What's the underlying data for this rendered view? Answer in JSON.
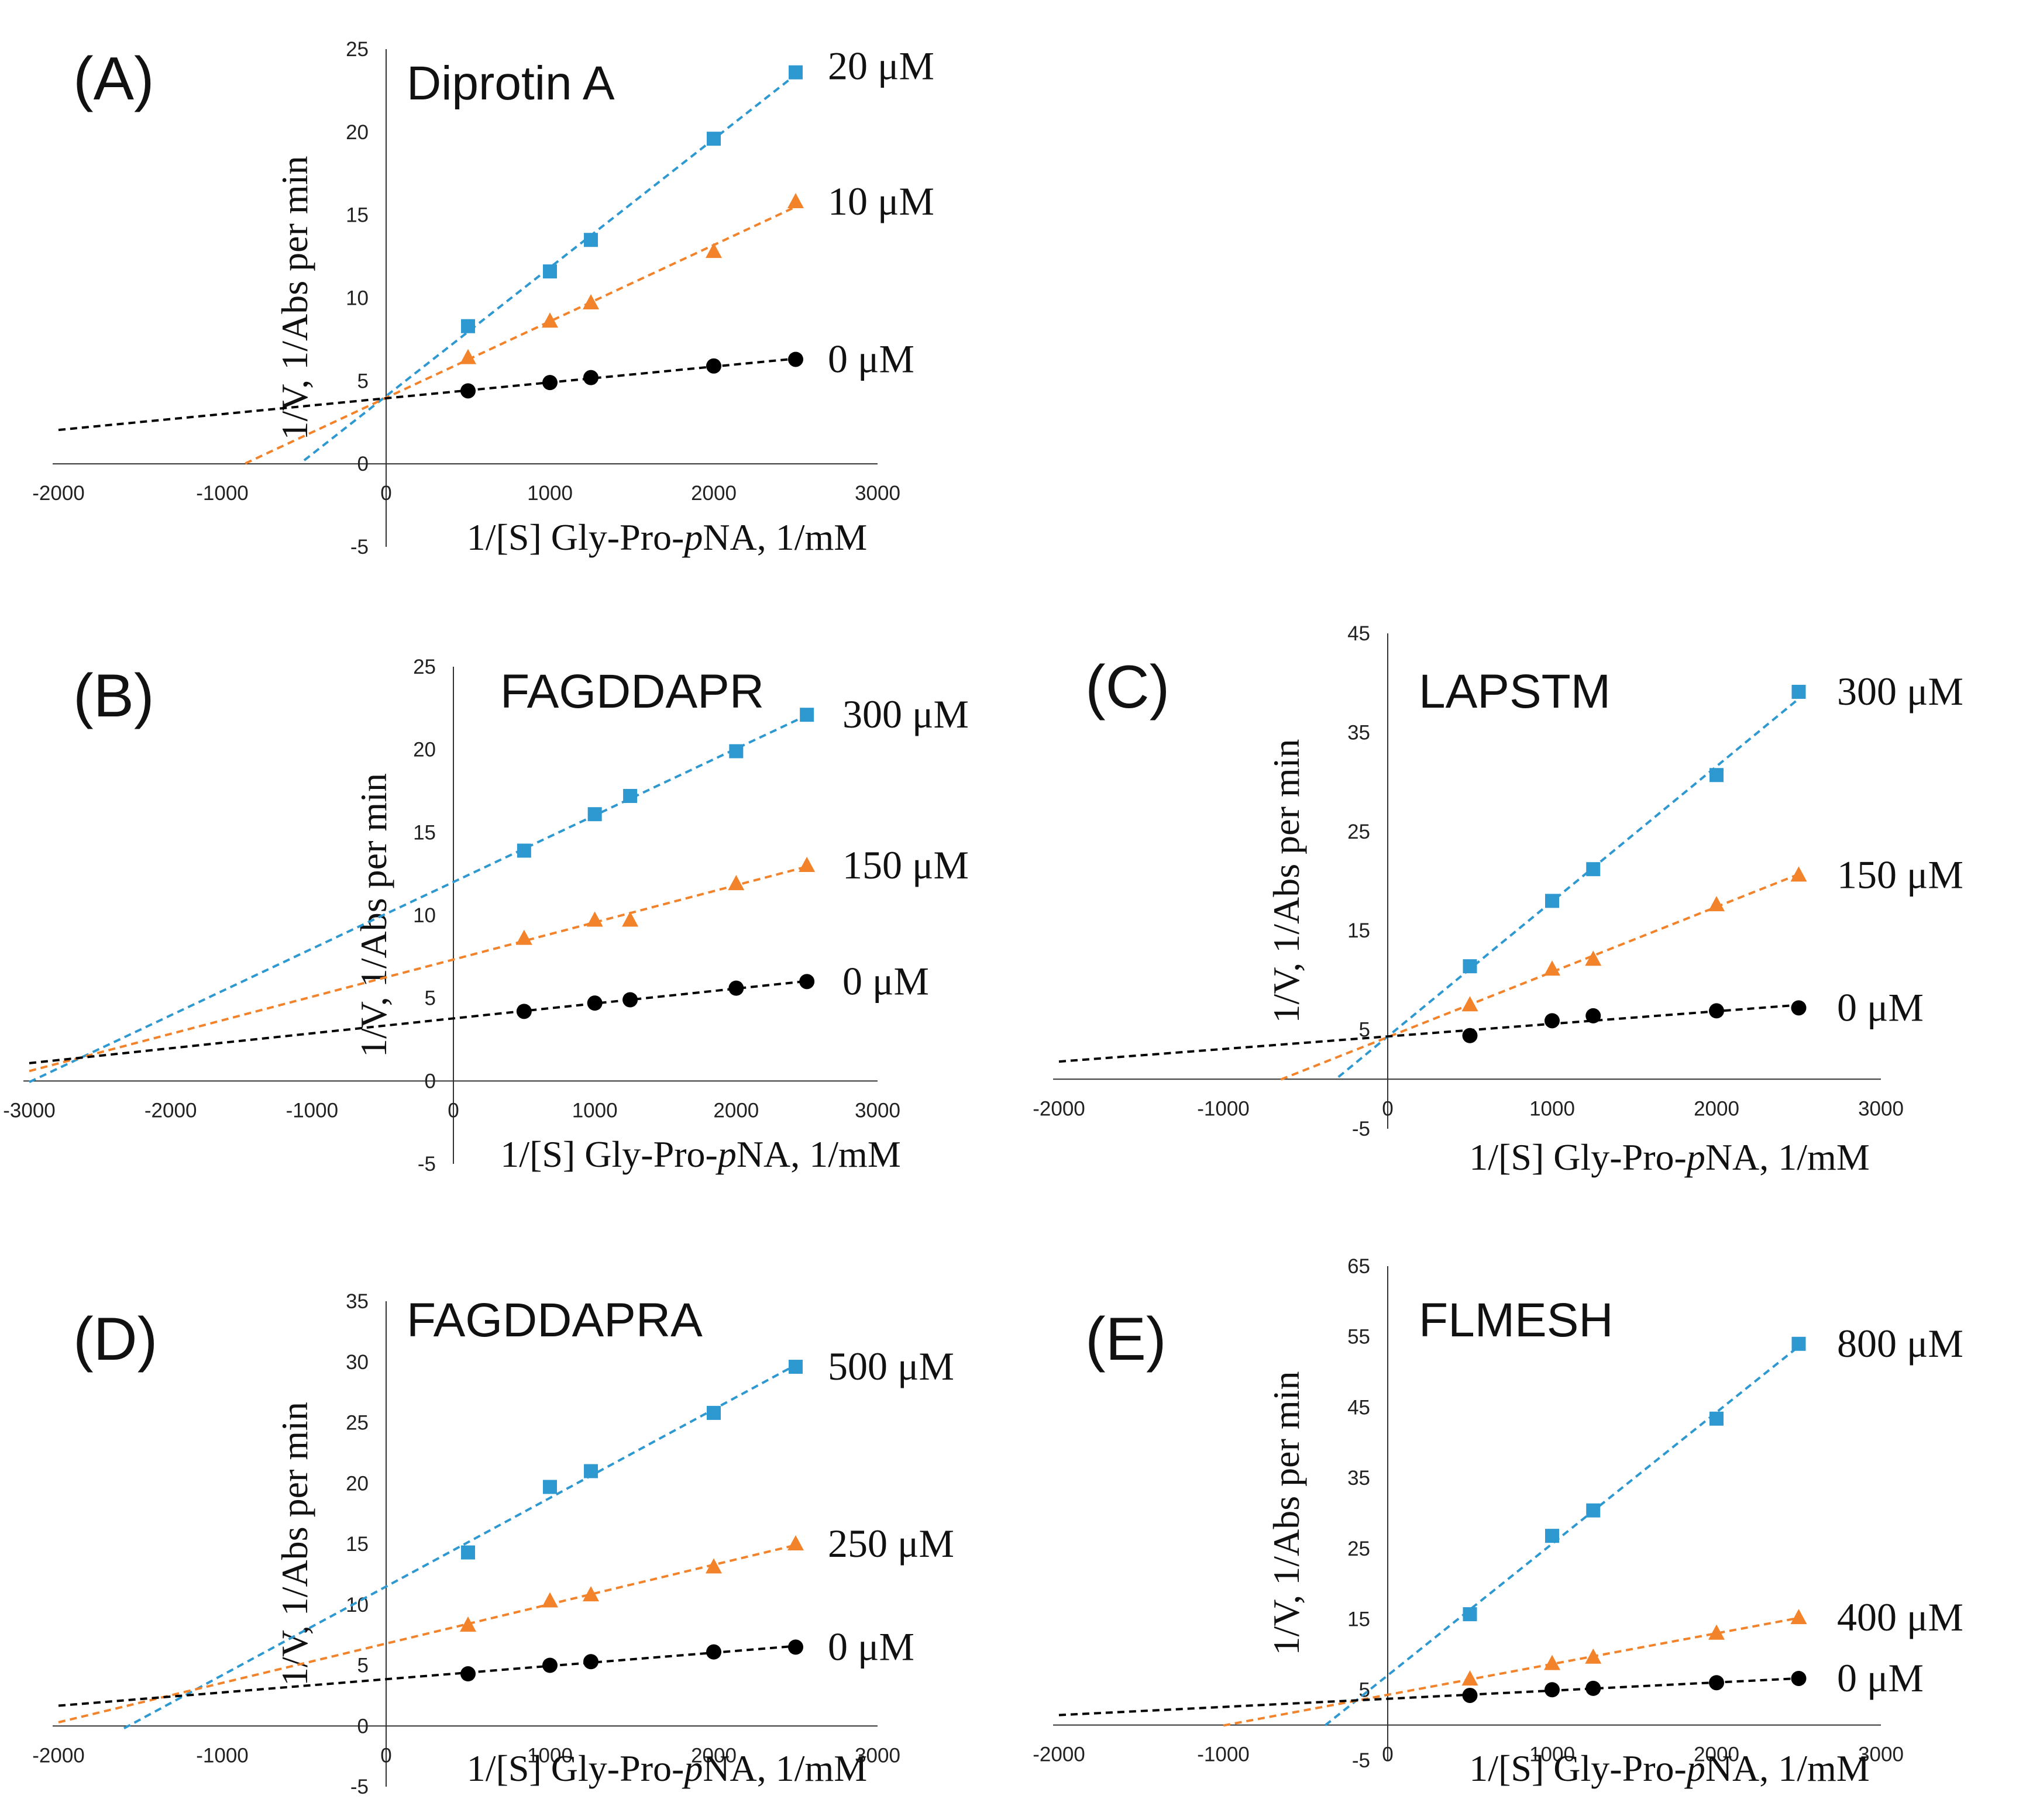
{
  "chart_data": [
    {
      "type": "scatter",
      "panel": "(A)",
      "title": "Diprotin A",
      "xlabel": "1/[S] Gly-Pro-pNA, 1/mM",
      "xlabel_main": "1/[S] Gly-Pro-",
      "xlabel_italic": "p",
      "xlabel_tail": "NA, 1/mM",
      "ylabel": "1/V, 1/Abs per min",
      "xlim": [
        -2000,
        3000
      ],
      "ylim": [
        -5,
        25
      ],
      "xticks": [
        -2000,
        -1000,
        0,
        1000,
        2000,
        3000
      ],
      "yticks": [
        -5,
        0,
        5,
        10,
        15,
        20,
        25
      ],
      "series": [
        {
          "name": "20 μM",
          "color": "#2E98D0",
          "marker": "square",
          "x": [
            500,
            1000,
            1250,
            2000,
            2500
          ],
          "y": [
            8.3,
            11.6,
            13.5,
            19.6,
            23.6
          ],
          "fit_x": [
            -500,
            2500
          ]
        },
        {
          "name": "10 μM",
          "color": "#F2832B",
          "marker": "triangle",
          "x": [
            500,
            1000,
            1250,
            2000,
            2500
          ],
          "y": [
            6.4,
            8.6,
            9.7,
            12.8,
            15.8
          ],
          "fit_x": [
            -860,
            2500
          ]
        },
        {
          "name": "0 μM",
          "color": "#000000",
          "marker": "circle",
          "x": [
            500,
            1000,
            1250,
            2000,
            2500
          ],
          "y": [
            4.4,
            4.9,
            5.2,
            5.9,
            6.3
          ],
          "fit_x": [
            -2000,
            2500
          ]
        }
      ]
    },
    {
      "type": "scatter",
      "panel": "(B)",
      "title": "FAGDDAPR",
      "xlabel": "1/[S] Gly-Pro-pNA, 1/mM",
      "xlabel_main": "1/[S] Gly-Pro-",
      "xlabel_italic": "p",
      "xlabel_tail": "NA, 1/mM",
      "ylabel": "1/V, 1/Abs per min",
      "xlim": [
        -3000,
        3000
      ],
      "ylim": [
        -5,
        25
      ],
      "xticks": [
        -3000,
        -2000,
        -1000,
        0,
        1000,
        2000,
        3000
      ],
      "yticks": [
        -5,
        0,
        5,
        10,
        15,
        20,
        25
      ],
      "series": [
        {
          "name": "300 μM",
          "color": "#2E98D0",
          "marker": "square",
          "x": [
            500,
            1000,
            1250,
            2000,
            2500
          ],
          "y": [
            13.9,
            16.1,
            17.2,
            19.9,
            22.1
          ],
          "fit_x": [
            -3000,
            2500
          ]
        },
        {
          "name": "150 μM",
          "color": "#F2832B",
          "marker": "triangle",
          "x": [
            500,
            1000,
            1250,
            2000,
            2500
          ],
          "y": [
            8.6,
            9.7,
            9.7,
            11.9,
            13.0
          ],
          "fit_x": [
            -3000,
            2500
          ]
        },
        {
          "name": "0 μM",
          "color": "#000000",
          "marker": "circle",
          "x": [
            500,
            1000,
            1250,
            2000,
            2500
          ],
          "y": [
            4.2,
            4.7,
            4.9,
            5.6,
            6.0
          ],
          "fit_x": [
            -3000,
            2500
          ]
        }
      ]
    },
    {
      "type": "scatter",
      "panel": "(C)",
      "title": "LAPSTM",
      "xlabel": "1/[S] Gly-Pro-pNA, 1/mM",
      "xlabel_main": "1/[S] Gly-Pro-",
      "xlabel_italic": "p",
      "xlabel_tail": "NA, 1/mM",
      "ylabel": "1/V, 1/Abs per min",
      "xlim": [
        -2000,
        3000
      ],
      "ylim": [
        -5,
        45
      ],
      "xticks": [
        -2000,
        -1000,
        0,
        1000,
        2000,
        3000
      ],
      "yticks": [
        -5,
        5,
        15,
        25,
        35,
        45
      ],
      "series": [
        {
          "name": "300 μM",
          "color": "#2E98D0",
          "marker": "square",
          "x": [
            500,
            1000,
            1250,
            2000,
            2500
          ],
          "y": [
            11.4,
            18.0,
            21.2,
            30.7,
            39.1
          ],
          "fit_x": [
            -300,
            2500
          ]
        },
        {
          "name": "150 μM",
          "color": "#F2832B",
          "marker": "triangle",
          "x": [
            500,
            1000,
            1250,
            2000,
            2500
          ],
          "y": [
            7.5,
            11.1,
            12.1,
            17.6,
            20.6
          ],
          "fit_x": [
            -650,
            2500
          ]
        },
        {
          "name": "0 μM",
          "color": "#000000",
          "marker": "circle",
          "x": [
            500,
            1000,
            1250,
            2000,
            2500
          ],
          "y": [
            4.4,
            5.9,
            6.4,
            6.9,
            7.2
          ],
          "fit_x": [
            -2000,
            2500
          ]
        }
      ]
    },
    {
      "type": "scatter",
      "panel": "(D)",
      "title": "FAGDDAPRA",
      "xlabel": "1/[S] Gly-Pro-pNA, 1/mM",
      "xlabel_main": "1/[S] Gly-Pro-",
      "xlabel_italic": "p",
      "xlabel_tail": "NA, 1/mM",
      "ylabel": "1/V, 1/Abs per min",
      "xlim": [
        -2000,
        3000
      ],
      "ylim": [
        -5,
        35
      ],
      "xticks": [
        -2000,
        -1000,
        0,
        1000,
        2000,
        3000
      ],
      "yticks": [
        -5,
        0,
        5,
        10,
        15,
        20,
        25,
        30,
        35
      ],
      "series": [
        {
          "name": "500 μM",
          "color": "#2E98D0",
          "marker": "square",
          "x": [
            500,
            1000,
            1250,
            2000,
            2500
          ],
          "y": [
            14.3,
            19.7,
            21.0,
            25.8,
            29.6
          ],
          "fit_x": [
            -1600,
            2500
          ]
        },
        {
          "name": "250 μM",
          "color": "#F2832B",
          "marker": "triangle",
          "x": [
            500,
            1000,
            1250,
            2000,
            2500
          ],
          "y": [
            8.3,
            10.3,
            10.8,
            13.1,
            15.0
          ],
          "fit_x": [
            -2000,
            2500
          ]
        },
        {
          "name": "0 μM",
          "color": "#000000",
          "marker": "circle",
          "x": [
            500,
            1000,
            1250,
            2000,
            2500
          ],
          "y": [
            4.3,
            5.0,
            5.3,
            6.1,
            6.5
          ],
          "fit_x": [
            -2000,
            2500
          ]
        }
      ]
    },
    {
      "type": "scatter",
      "panel": "(E)",
      "title": "FLMESH",
      "xlabel": "1/[S] Gly-Pro-pNA, 1/mM",
      "xlabel_main": "1/[S] Gly-Pro-",
      "xlabel_italic": "p",
      "xlabel_tail": "NA, 1/mM",
      "ylabel": "1/V, 1/Abs per min",
      "xlim": [
        -2000,
        3000
      ],
      "ylim": [
        -5,
        65
      ],
      "xticks": [
        -2000,
        -1000,
        0,
        1000,
        2000,
        3000
      ],
      "yticks": [
        -5,
        5,
        15,
        25,
        35,
        45,
        55,
        65
      ],
      "series": [
        {
          "name": "800 μM",
          "color": "#2E98D0",
          "marker": "square",
          "x": [
            500,
            1000,
            1250,
            2000,
            2500
          ],
          "y": [
            15.7,
            26.8,
            30.4,
            43.4,
            54.0
          ],
          "fit_x": [
            -380,
            2500
          ]
        },
        {
          "name": "400 μM",
          "color": "#F2832B",
          "marker": "triangle",
          "x": [
            500,
            1000,
            1250,
            2000,
            2500
          ],
          "y": [
            6.5,
            8.7,
            9.6,
            13.0,
            15.2
          ],
          "fit_x": [
            -1000,
            2500
          ]
        },
        {
          "name": "0 μM",
          "color": "#000000",
          "marker": "circle",
          "x": [
            500,
            1000,
            1250,
            2000,
            2500
          ],
          "y": [
            4.2,
            5.0,
            5.2,
            6.0,
            6.6
          ],
          "fit_x": [
            -2000,
            2500
          ]
        }
      ]
    }
  ]
}
